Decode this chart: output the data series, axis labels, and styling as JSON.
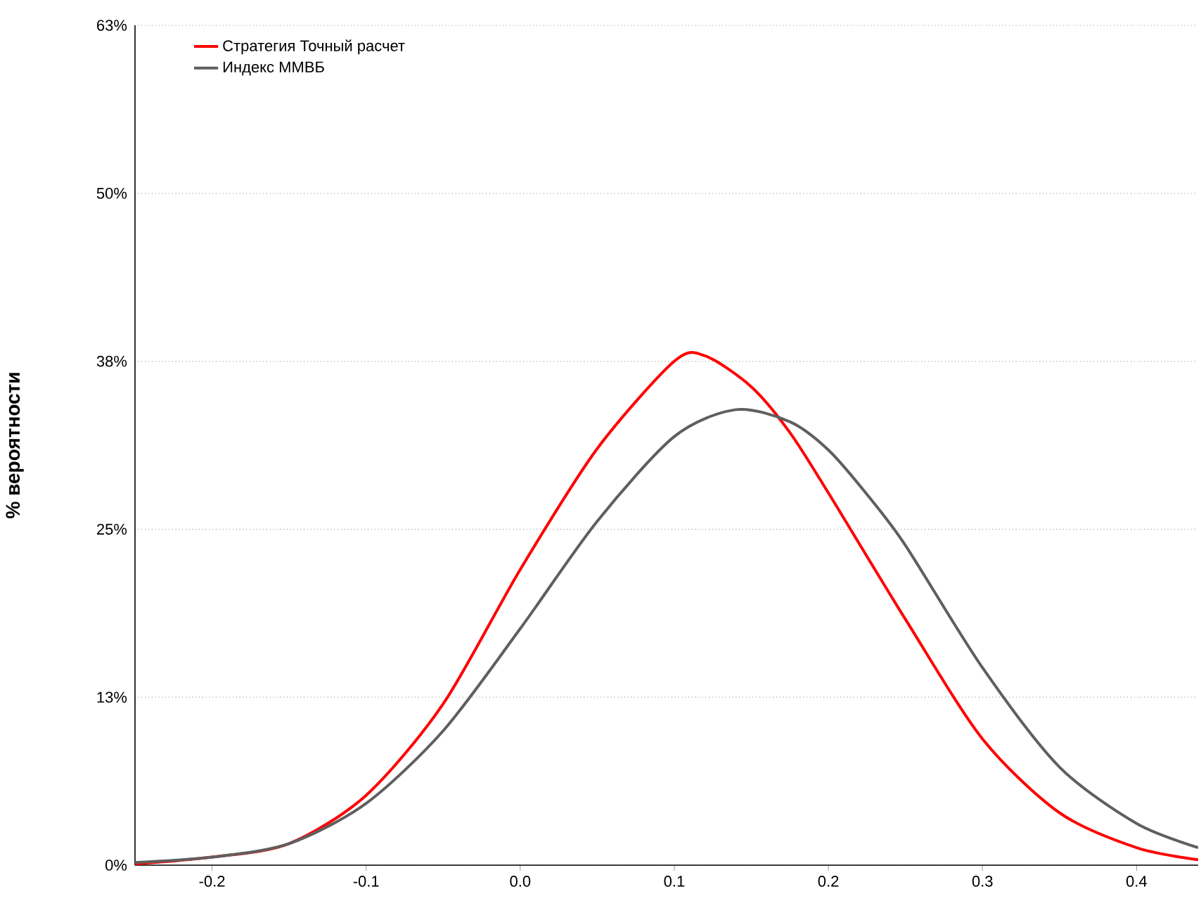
{
  "chart_data": {
    "type": "line",
    "ylabel": "% вероятности",
    "xlim": [
      -0.25,
      0.44
    ],
    "xticks": [
      -0.2,
      -0.1,
      {
        "value": 0,
        "label": "0.0"
      },
      0.1,
      0.2,
      0.3,
      0.4
    ],
    "ylim": [
      0,
      62.5
    ],
    "yticks": [
      {
        "value": 0,
        "label": "0%"
      },
      {
        "value": 12.5,
        "label": "13%"
      },
      {
        "value": 25,
        "label": "25%"
      },
      {
        "value": 37.5,
        "label": "38%"
      },
      {
        "value": 50,
        "label": "50%"
      },
      {
        "value": 62.5,
        "label": "63%"
      }
    ],
    "grid": "y",
    "legend": "top left",
    "marker": "none",
    "line_style": "solid",
    "series": [
      {
        "name": "Стратегия Точный расчет",
        "color": "#ff0000",
        "x": [
          -0.25,
          -0.2,
          -0.15,
          -0.1,
          -0.05,
          0.0,
          0.05,
          0.1,
          0.12,
          0.15,
          0.175,
          0.2,
          0.25,
          0.3,
          0.35,
          0.4,
          0.44
        ],
        "values": [
          0.1,
          0.6,
          1.6,
          5.2,
          12,
          22,
          31,
          37.5,
          37.9,
          35.6,
          32.2,
          27.7,
          18.3,
          9.4,
          3.9,
          1.3,
          0.4
        ]
      },
      {
        "name": "Индекс ММВБ",
        "color": "#5f5f5f",
        "x": [
          -0.25,
          -0.2,
          -0.15,
          -0.1,
          -0.05,
          0.0,
          0.05,
          0.1,
          0.14,
          0.175,
          0.2,
          0.225,
          0.25,
          0.3,
          0.35,
          0.4,
          0.44
        ],
        "values": [
          0.2,
          0.6,
          1.6,
          4.6,
          10,
          17.6,
          25.6,
          31.9,
          33.9,
          33.0,
          30.9,
          27.6,
          23.8,
          14.7,
          7.3,
          3.1,
          1.3
        ]
      }
    ]
  }
}
